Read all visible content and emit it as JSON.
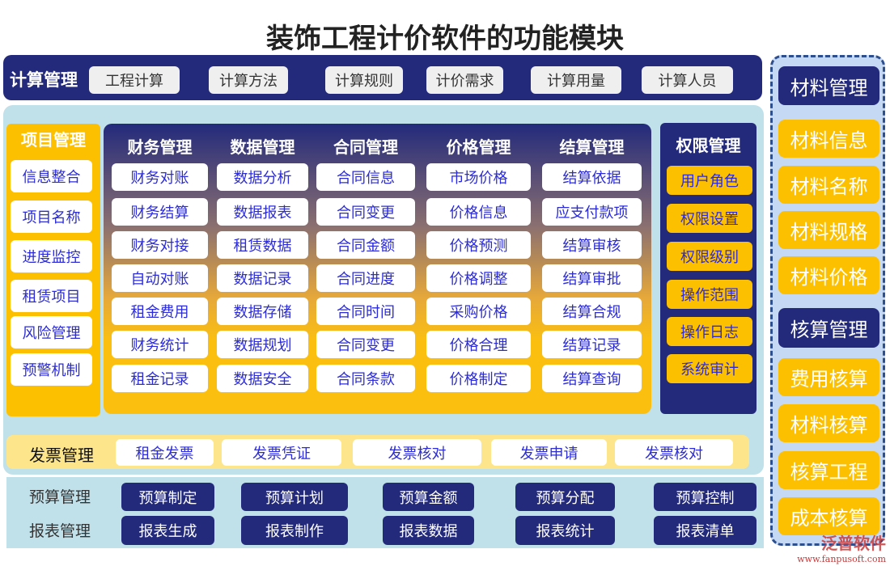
{
  "title": "装饰工程计价软件的功能模块",
  "calc": {
    "label": "计算管理",
    "items": [
      "工程计算",
      "计算方法",
      "计算规则",
      "计价需求",
      "计算用量",
      "计算人员"
    ]
  },
  "project": {
    "label": "项目管理",
    "items": [
      "信息整合",
      "项目名称",
      "进度监控",
      "租赁项目",
      "风险管理",
      "预警机制"
    ]
  },
  "columns": [
    {
      "label": "财务管理",
      "items": [
        "财务对账",
        "财务结算",
        "财务对接",
        "自动对账",
        "租金费用",
        "财务统计",
        "租金记录"
      ]
    },
    {
      "label": "数据管理",
      "items": [
        "数据分析",
        "数据报表",
        "租赁数据",
        "数据记录",
        "数据存储",
        "数据规划",
        "数据安全"
      ]
    },
    {
      "label": "合同管理",
      "items": [
        "合同信息",
        "合同变更",
        "合同金额",
        "合同进度",
        "合同时间",
        "合同变更",
        "合同条款"
      ]
    },
    {
      "label": "价格管理",
      "items": [
        "市场价格",
        "价格信息",
        "价格预测",
        "价格调整",
        "采购价格",
        "价格合理",
        "价格制定"
      ]
    },
    {
      "label": "结算管理",
      "items": [
        "结算依据",
        "应支付款项",
        "结算审核",
        "结算审批",
        "结算合规",
        "结算记录",
        "结算查询"
      ]
    }
  ],
  "permission": {
    "label": "权限管理",
    "items": [
      "用户角色",
      "权限设置",
      "权限级别",
      "操作范围",
      "操作日志",
      "系统审计"
    ]
  },
  "invoice": {
    "label": "发票管理",
    "items": [
      "租金发票",
      "发票凭证",
      "发票核对",
      "发票申请",
      "发票核对"
    ]
  },
  "budget": {
    "label": "预算管理",
    "items": [
      "预算制定",
      "预算计划",
      "预算金额",
      "预算分配",
      "预算控制"
    ]
  },
  "report": {
    "label": "报表管理",
    "items": [
      "报表生成",
      "报表制作",
      "报表数据",
      "报表统计",
      "报表清单"
    ]
  },
  "material": {
    "label": "材料管理",
    "items": [
      "材料信息",
      "材料名称",
      "材料规格",
      "材料价格"
    ]
  },
  "accounting": {
    "label": "核算管理",
    "items": [
      "费用核算",
      "材料核算",
      "核算工程",
      "成本核算"
    ]
  },
  "logo": {
    "name": "泛普软件",
    "url": "www.fanpusoft.com"
  },
  "colors": {
    "navy": "#232a7c",
    "yellow": "#fdc000",
    "panel": "#c0e0ea",
    "invoice": "#fde58c",
    "side": "#c5d9f5"
  }
}
